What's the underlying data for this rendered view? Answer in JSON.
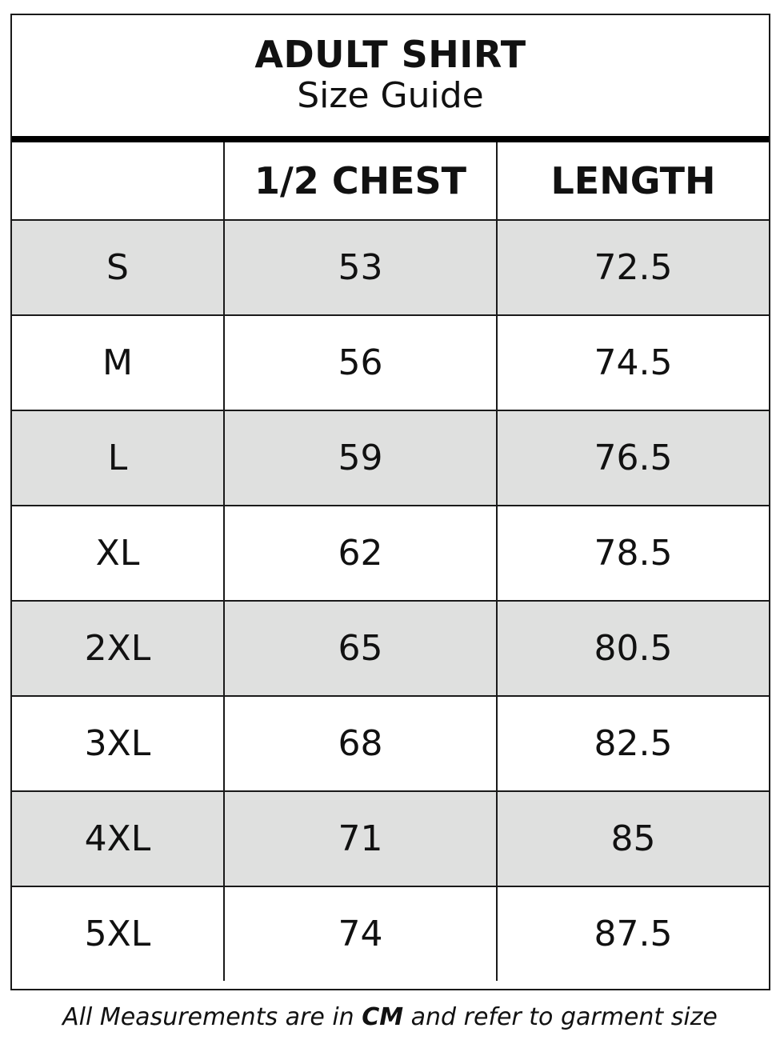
{
  "title": "ADULT SHIRT",
  "subtitle": "Size Guide",
  "headers": [
    "",
    "1/2 CHEST",
    "LENGTH"
  ],
  "rows": [
    {
      "size": "S",
      "chest": "53",
      "length": "72.5"
    },
    {
      "size": "M",
      "chest": "56",
      "length": "74.5"
    },
    {
      "size": "L",
      "chest": "59",
      "length": "76.5"
    },
    {
      "size": "XL",
      "chest": "62",
      "length": "78.5"
    },
    {
      "size": "2XL",
      "chest": "65",
      "length": "80.5"
    },
    {
      "size": "3XL",
      "chest": "68",
      "length": "82.5"
    },
    {
      "size": "4XL",
      "chest": "71",
      "length": "85"
    },
    {
      "size": "5XL",
      "chest": "74",
      "length": "87.5"
    }
  ],
  "footer": {
    "before": "All Measurements are in ",
    "unit": "CM",
    "after": " and refer to garment size"
  },
  "colors": {
    "alt_row": "#dfe0df",
    "border": "#1a1a1a"
  }
}
